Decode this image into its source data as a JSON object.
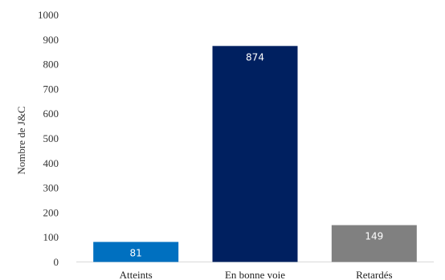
{
  "chart_data": {
    "type": "bar",
    "categories": [
      "Atteints",
      "En bonne voie",
      "Retardés"
    ],
    "values": [
      81,
      874,
      149
    ],
    "data_labels": [
      "81",
      "874",
      "149"
    ],
    "colors": [
      "#0070C0",
      "#002060",
      "#808080"
    ],
    "ylabel": "Nombre de J&C",
    "ylim": [
      0,
      1000
    ],
    "yticks": [
      "0",
      "100",
      "200",
      "300",
      "400",
      "500",
      "600",
      "700",
      "800",
      "900",
      "1000"
    ],
    "grid": false,
    "legend": "none"
  }
}
